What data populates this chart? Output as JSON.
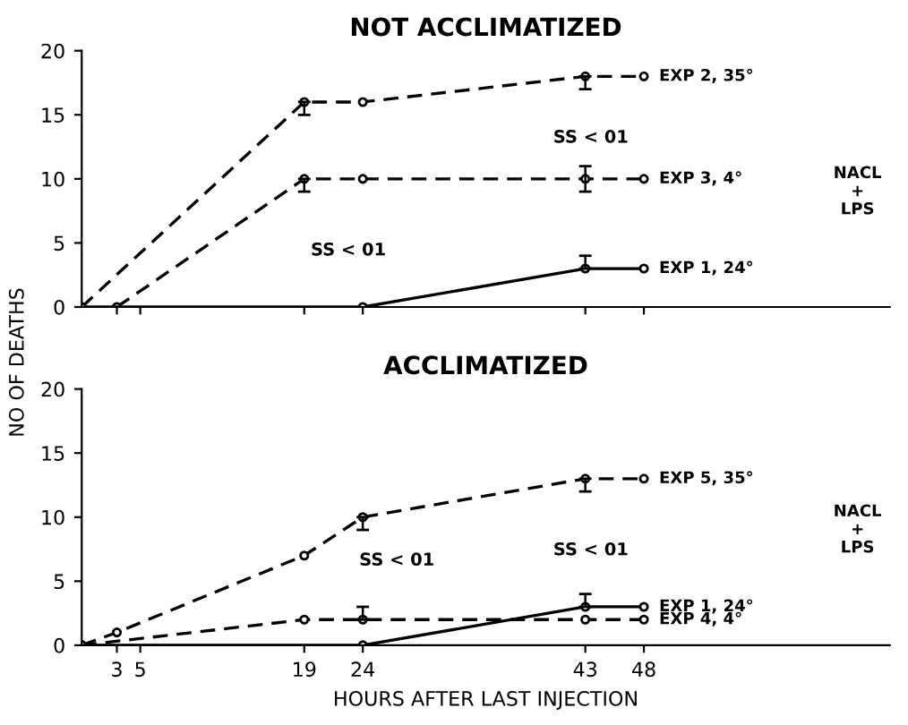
{
  "chart_data": [
    {
      "type": "line",
      "title": "NOT ACCLIMATIZED",
      "ylabel": "NO OF DEATHS",
      "xlim": [
        0,
        69
      ],
      "ylim": [
        0,
        20
      ],
      "xticks": [
        3,
        5,
        19,
        24,
        43,
        48
      ],
      "yticks": [
        0,
        5,
        10,
        15,
        20
      ],
      "tick_labels": "y",
      "grid": false,
      "legend": false,
      "marker": "circle",
      "annotations": [
        "SS < 01",
        "SS < 01",
        "NACL\n+\nLPS"
      ],
      "series": [
        {
          "name": "EXP 2, 35°",
          "color": "#000000",
          "line_style": "dashed",
          "x": [
            0,
            19,
            24,
            43,
            48
          ],
          "values": [
            0,
            16,
            16,
            18,
            18
          ],
          "errors": [
            null,
            [
              15,
              16
            ],
            null,
            [
              17,
              18
            ],
            null
          ]
        },
        {
          "name": "EXP 3, 4°",
          "color": "#000000",
          "line_style": "dashed",
          "x": [
            3,
            19,
            24,
            43,
            48
          ],
          "values": [
            0,
            10,
            10,
            10,
            10
          ],
          "errors": [
            null,
            [
              9,
              10
            ],
            null,
            [
              9,
              11
            ],
            null
          ]
        },
        {
          "name": "EXP 1, 24°",
          "color": "#000000",
          "line_style": "solid",
          "x": [
            0,
            24,
            43,
            48
          ],
          "values": [
            0,
            0,
            3,
            3
          ],
          "errors": [
            null,
            null,
            [
              3,
              4
            ],
            null
          ]
        }
      ]
    },
    {
      "type": "line",
      "title": "ACCLIMATIZED",
      "xlabel": "HOURS AFTER LAST INJECTION",
      "xlim": [
        0,
        69
      ],
      "ylim": [
        0,
        20
      ],
      "xticks": [
        3,
        5,
        19,
        24,
        43,
        48
      ],
      "yticks": [
        0,
        5,
        10,
        15,
        20
      ],
      "grid": false,
      "legend": false,
      "marker": "circle",
      "annotations": [
        "SS < 01",
        "SS < 01",
        "NACL\n+\nLPS"
      ],
      "series": [
        {
          "name": "EXP 5, 35°",
          "color": "#000000",
          "line_style": "dashed",
          "x": [
            0,
            3,
            19,
            24,
            43,
            48
          ],
          "values": [
            0,
            1,
            7,
            10,
            13,
            13
          ],
          "errors": [
            null,
            null,
            null,
            [
              9,
              10
            ],
            [
              12,
              13
            ],
            null
          ]
        },
        {
          "name": "EXP 1, 24°",
          "color": "#000000",
          "line_style": "solid",
          "x": [
            0,
            24,
            43,
            48
          ],
          "values": [
            0,
            0,
            3,
            3
          ],
          "errors": [
            null,
            null,
            [
              3,
              4
            ],
            null
          ]
        },
        {
          "name": "EXP 4, 4°",
          "color": "#000000",
          "line_style": "dashed",
          "x": [
            0,
            19,
            24,
            43,
            48
          ],
          "values": [
            0,
            2,
            2,
            2,
            2
          ],
          "errors": [
            null,
            null,
            [
              2,
              3
            ],
            null,
            null
          ]
        }
      ]
    }
  ]
}
